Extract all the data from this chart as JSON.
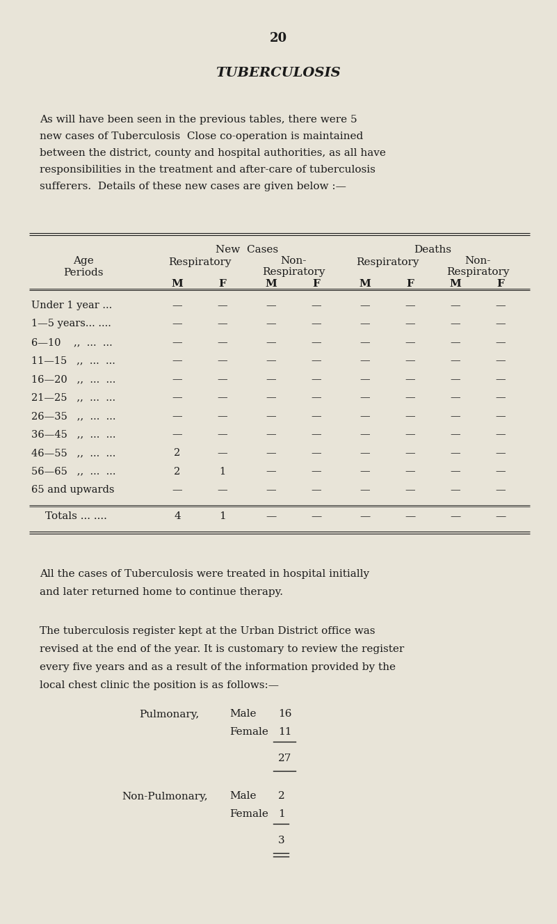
{
  "bg_color": "#e8e4d8",
  "text_color": "#1a1a1a",
  "page_number": "20",
  "title": "TUBERCULOSIS",
  "intro_lines": [
    "As will have been seen in the previous tables, there were 5",
    "new cases of Tuberculosis  Close co-operation is maintained",
    "between the district, county and hospital authorities, as all have",
    "responsibilities in the treatment and after-care of tuberculosis",
    "sufferers.  Details of these new cases are given below :—"
  ],
  "age_rows_display": [
    "Under 1 year ...",
    "1—5 years... ....",
    "6—10    ,,  ...  ...",
    "11—15   ,,  ...  ...",
    "16—20   ,,  ...  ...",
    "21—25   ,,  ...  ...",
    "26—35   ,,  ...  ...",
    "36—45   ,,  ...  ...",
    "46—55   ,,  ...  ...",
    "56—65   ,,  ...  ...",
    "65 and upwards"
  ],
  "data_values": [
    [
      "—",
      "—",
      "—",
      "—",
      "—",
      "—",
      "—",
      "—"
    ],
    [
      "—",
      "—",
      "—",
      "—",
      "—",
      "—",
      "—",
      "—"
    ],
    [
      "—",
      "—",
      "—",
      "—",
      "—",
      "—",
      "—",
      "—"
    ],
    [
      "—",
      "—",
      "—",
      "—",
      "—",
      "—",
      "—",
      "—"
    ],
    [
      "—",
      "—",
      "—",
      "—",
      "—",
      "—",
      "—",
      "—"
    ],
    [
      "—",
      "—",
      "—",
      "—",
      "—",
      "—",
      "—",
      "—"
    ],
    [
      "—",
      "—",
      "—",
      "—",
      "—",
      "✓",
      "—",
      "—"
    ],
    [
      "—",
      "—",
      "—",
      "—",
      "—",
      "—",
      "—",
      "—"
    ],
    [
      "2",
      "—",
      "—",
      "—",
      "—",
      "—",
      "—",
      "—"
    ],
    [
      "2",
      "1",
      "—",
      "—",
      "—",
      "—",
      "—",
      "—"
    ],
    [
      "—",
      "—",
      "—",
      "—",
      "—",
      "—",
      "—",
      "—"
    ]
  ],
  "totals_row": [
    "4",
    "1",
    "—",
    "—",
    "—",
    "—",
    "—",
    "—"
  ],
  "para2_lines": [
    "All the cases of Tuberculosis were treated in hospital initially",
    "and later returned home to continue therapy."
  ],
  "para3_lines": [
    "The tuberculosis register kept at the Urban District office was",
    "revised at the end of the year. It is customary to review the register",
    "every five years and as a result of the information provided by the",
    "local chest clinic the position is as follows:—"
  ]
}
